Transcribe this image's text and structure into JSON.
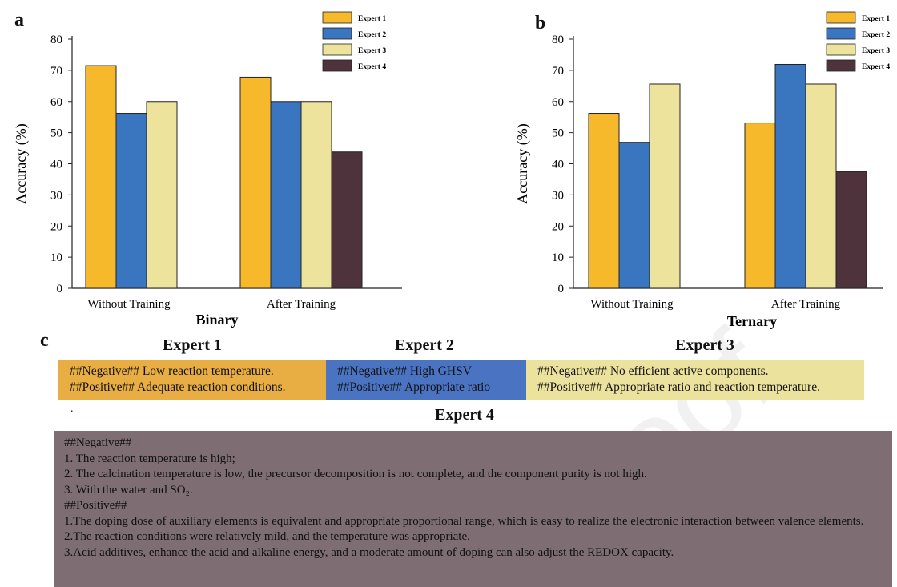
{
  "chart_data": [
    {
      "type": "bar",
      "panel": "a",
      "categories": [
        "Without Training",
        "After Training"
      ],
      "series": [
        {
          "name": "Expert 1",
          "values": [
            71.5,
            67.8
          ]
        },
        {
          "name": "Expert 2",
          "values": [
            56.2,
            60.0
          ]
        },
        {
          "name": "Expert 3",
          "values": [
            60.0,
            60.0
          ]
        },
        {
          "name": "Expert 4",
          "values": [
            null,
            43.8
          ]
        }
      ],
      "xlabel": "Binary",
      "ylabel": "Accuracy (%)",
      "ylim": [
        0,
        80
      ],
      "yticks": [
        0,
        10,
        20,
        30,
        40,
        50,
        60,
        70,
        80
      ],
      "legend": "top-right",
      "colors": [
        "#f6b92c",
        "#3a76c0",
        "#ede39c",
        "#4e333c"
      ]
    },
    {
      "type": "bar",
      "panel": "b",
      "categories": [
        "Without Training",
        "After Training"
      ],
      "series": [
        {
          "name": "Expert 1",
          "values": [
            56.2,
            53.1
          ]
        },
        {
          "name": "Expert 2",
          "values": [
            46.9,
            71.9
          ]
        },
        {
          "name": "Expert 3",
          "values": [
            65.6,
            65.6
          ]
        },
        {
          "name": "Expert 4",
          "values": [
            null,
            37.5
          ]
        }
      ],
      "xlabel": "Ternary",
      "ylabel": "Accuracy (%)",
      "ylim": [
        0,
        80
      ],
      "yticks": [
        0,
        10,
        20,
        30,
        40,
        50,
        60,
        70,
        80
      ],
      "legend": "top-right",
      "colors": [
        "#f6b92c",
        "#3a76c0",
        "#ede39c",
        "#4e333c"
      ]
    }
  ],
  "panel_c": {
    "letter": "c",
    "expert1": {
      "title": "Expert 1",
      "negative": "##Negative## Low reaction temperature.",
      "positive": "##Positive##  Adequate reaction conditions.",
      "color": "#e8ae44"
    },
    "expert2": {
      "title": "Expert 2",
      "negative": "##Negative## High GHSV",
      "positive": "##Positive## Appropriate ratio",
      "color": "#4a74c2"
    },
    "expert3": {
      "title": "Expert 3",
      "negative": "##Negative## No efficient active components.",
      "positive": "##Positive##  Appropriate ratio and reaction temperature.",
      "color": "#ebe29d"
    },
    "expert4": {
      "title": "Expert 4",
      "color": "#7e6d73",
      "lines": [
        "##Negative##",
        "1. The reaction temperature is high;",
        "2. The calcination temperature is low, the precursor decomposition is not complete, and the component purity is not high.",
        "3. With the water and SO₂.",
        "##Positive##",
        "1.The doping dose of auxiliary elements is equivalent and appropriate proportional range, which is easy to realize the electronic interaction between valence elements.",
        "2.The reaction conditions were relatively mild, and the temperature was appropriate.",
        "3.Acid additives, enhance the acid and alkaline energy, and a moderate amount of doping can also adjust the REDOX capacity."
      ]
    },
    "dot": "."
  },
  "watermark": "proof"
}
